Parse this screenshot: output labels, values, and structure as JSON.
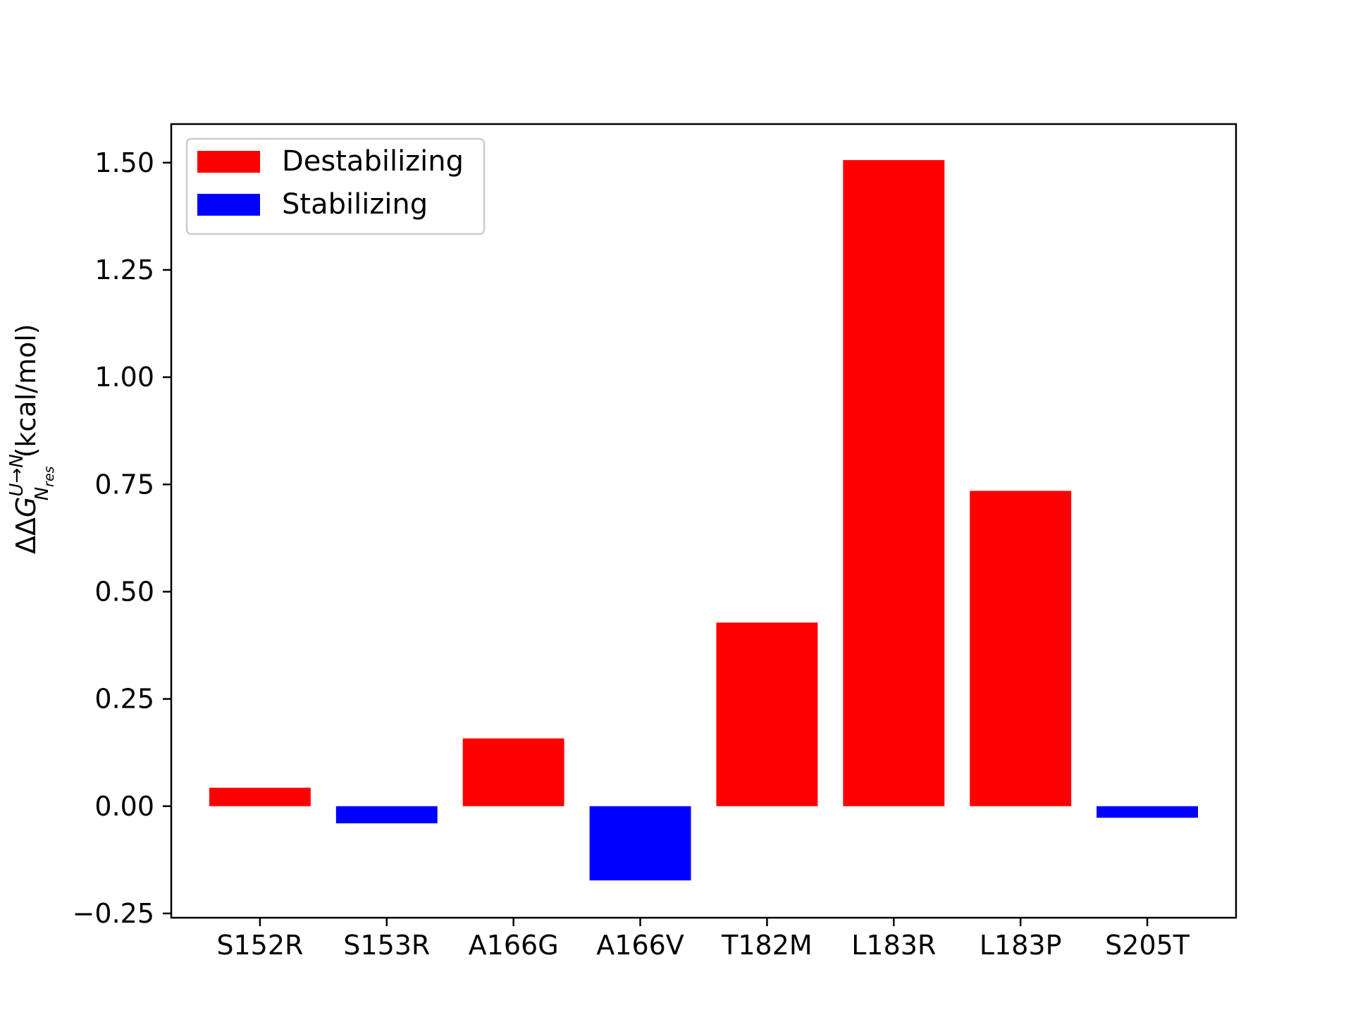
{
  "chart_data": {
    "type": "bar",
    "title": "",
    "xlabel": "",
    "ylabel": {
      "prefix": "ΔΔ",
      "symbol": "G",
      "superscript": "U→N",
      "subscript_main": "N",
      "subscript_sub": "res",
      "units": "(kcal/mol)"
    },
    "ylim": [
      -0.26,
      1.59
    ],
    "yticks": [
      -0.25,
      0.0,
      0.25,
      0.5,
      0.75,
      1.0,
      1.25,
      1.5
    ],
    "ytick_labels": [
      "−0.25",
      "0.00",
      "0.25",
      "0.50",
      "0.75",
      "1.00",
      "1.25",
      "1.50"
    ],
    "categories": [
      "S152R",
      "S153R",
      "A166G",
      "A166V",
      "T182M",
      "L183R",
      "L183P",
      "S205T"
    ],
    "values": [
      0.043,
      -0.04,
      0.158,
      -0.173,
      0.428,
      1.506,
      0.735,
      -0.027
    ],
    "bar_colors": [
      "#ff0000",
      "#0000ff",
      "#ff0000",
      "#0000ff",
      "#ff0000",
      "#ff0000",
      "#ff0000",
      "#0000ff"
    ],
    "grid": false,
    "legend": {
      "position": "top-left",
      "entries": [
        {
          "label": "Destabilizing",
          "color": "#ff0000"
        },
        {
          "label": "Stabilizing",
          "color": "#0000ff"
        }
      ]
    }
  }
}
